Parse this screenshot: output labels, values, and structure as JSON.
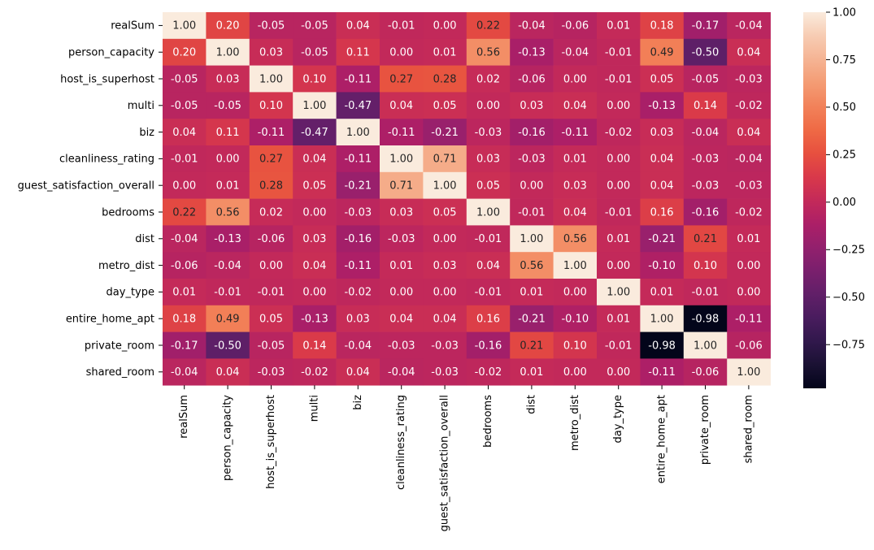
{
  "chart_data": {
    "type": "heatmap",
    "title": "",
    "xlabel": "",
    "ylabel": "",
    "variables": [
      "realSum",
      "person_capacity",
      "host_is_superhost",
      "multi",
      "biz",
      "cleanliness_rating",
      "guest_satisfaction_overall",
      "bedrooms",
      "dist",
      "metro_dist",
      "day_type",
      "entire_home_apt",
      "private_room",
      "shared_room"
    ],
    "x_labels": [
      "realSum",
      "person_capacity",
      "host_is_superhost",
      "multi",
      "biz",
      "cleanliness_rating",
      "guest_satisfaction_overall",
      "bedrooms",
      "dist",
      "metro_dist",
      "day_type",
      "entire_home_apt",
      "private_room",
      "shared_room"
    ],
    "y_labels": [
      "realSum",
      "person_capacity",
      "host_is_superhost",
      "multi",
      "biz",
      "cleanliness_rating",
      "guest_satisfaction_overall",
      "bedrooms",
      "dist",
      "metro_dist",
      "day_type",
      "entire_home_apt",
      "private_room",
      "shared_room"
    ],
    "values": [
      [
        1.0,
        0.2,
        -0.05,
        -0.05,
        0.04,
        -0.01,
        -0.0,
        0.22,
        -0.04,
        -0.06,
        0.01,
        0.18,
        -0.17,
        -0.04
      ],
      [
        0.2,
        1.0,
        0.03,
        -0.05,
        0.11,
        0.0,
        0.01,
        0.56,
        -0.13,
        -0.04,
        -0.01,
        0.49,
        -0.5,
        0.04
      ],
      [
        -0.05,
        0.03,
        1.0,
        0.1,
        -0.11,
        0.27,
        0.28,
        0.02,
        -0.06,
        -0.0,
        -0.01,
        0.05,
        -0.05,
        -0.03
      ],
      [
        -0.05,
        -0.05,
        0.1,
        1.0,
        -0.47,
        0.04,
        0.05,
        -0.0,
        0.03,
        0.04,
        -0.0,
        -0.13,
        0.14,
        -0.02
      ],
      [
        0.04,
        0.11,
        -0.11,
        -0.47,
        1.0,
        -0.11,
        -0.21,
        -0.03,
        -0.16,
        -0.11,
        -0.02,
        0.03,
        -0.04,
        0.04
      ],
      [
        -0.01,
        0.0,
        0.27,
        0.04,
        -0.11,
        1.0,
        0.71,
        0.03,
        -0.03,
        0.01,
        0.0,
        0.04,
        -0.03,
        -0.04
      ],
      [
        -0.0,
        0.01,
        0.28,
        0.05,
        -0.21,
        0.71,
        1.0,
        0.05,
        -0.0,
        0.03,
        0.0,
        0.04,
        -0.03,
        -0.03
      ],
      [
        0.22,
        0.56,
        0.02,
        -0.0,
        -0.03,
        0.03,
        0.05,
        1.0,
        -0.01,
        0.04,
        -0.01,
        0.16,
        -0.16,
        -0.02
      ],
      [
        -0.04,
        -0.13,
        -0.06,
        0.03,
        -0.16,
        -0.03,
        -0.0,
        -0.01,
        1.0,
        0.56,
        0.01,
        -0.21,
        0.21,
        0.01
      ],
      [
        -0.06,
        -0.04,
        -0.0,
        0.04,
        -0.11,
        0.01,
        0.03,
        0.04,
        0.56,
        1.0,
        0.0,
        -0.1,
        0.1,
        -0.0
      ],
      [
        0.01,
        -0.01,
        -0.01,
        -0.0,
        -0.02,
        0.0,
        0.0,
        -0.01,
        0.01,
        0.0,
        1.0,
        0.01,
        -0.01,
        0.0
      ],
      [
        0.18,
        0.49,
        0.05,
        -0.13,
        0.03,
        0.04,
        0.04,
        0.16,
        -0.21,
        -0.1,
        0.01,
        1.0,
        -0.98,
        -0.11
      ],
      [
        -0.17,
        -0.5,
        -0.05,
        0.14,
        -0.04,
        -0.03,
        -0.03,
        -0.16,
        0.21,
        0.1,
        -0.01,
        -0.98,
        1.0,
        -0.06
      ],
      [
        -0.04,
        0.04,
        -0.03,
        -0.02,
        0.04,
        -0.04,
        -0.03,
        -0.02,
        0.01,
        -0.0,
        0.0,
        -0.11,
        -0.06,
        1.0
      ]
    ],
    "value_format": "0.00",
    "colormap": "rocket",
    "color_range": [
      -0.98,
      1.0
    ],
    "colorbar": {
      "ticks": [
        1.0,
        0.75,
        0.5,
        0.25,
        0.0,
        -0.25,
        -0.5,
        -0.75
      ],
      "tick_labels": [
        "1.00",
        "0.75",
        "0.50",
        "0.25",
        "0.00",
        "−0.25",
        "−0.50",
        "−0.75"
      ]
    },
    "colormap_stops": [
      "#03051a",
      "#1a1133",
      "#31184c",
      "#491c5e",
      "#611f68",
      "#7a1f6d",
      "#93206d",
      "#ac1f67",
      "#c42a59",
      "#d9394a",
      "#e7503f",
      "#ef6a45",
      "#f2825a",
      "#f49c74",
      "#f5b494",
      "#f7ccb3",
      "#faebdd"
    ],
    "text_colors": {
      "light": "#ffffff",
      "dark": "#262626"
    },
    "legend": "right colorbar",
    "grid": false
  }
}
